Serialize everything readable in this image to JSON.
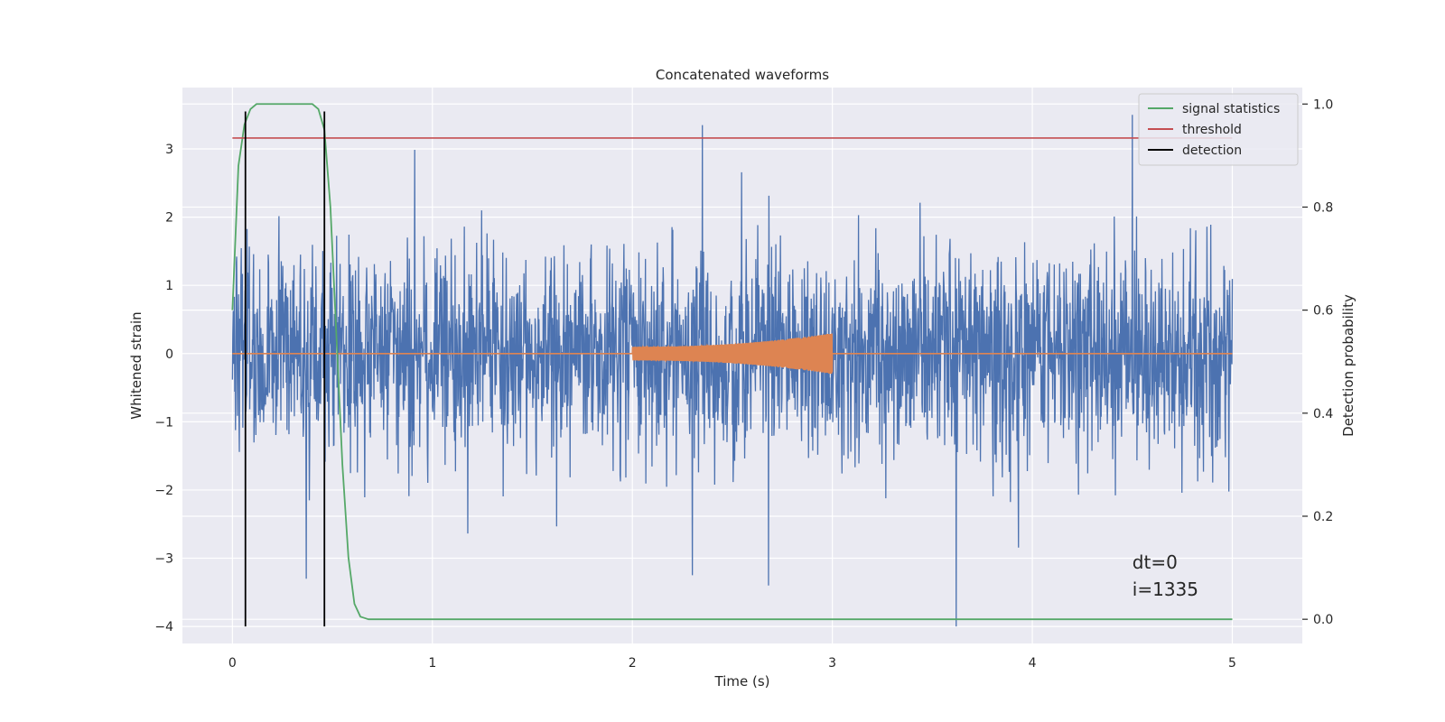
{
  "chart_data": {
    "type": "line",
    "title": "Concatenated waveforms",
    "xlabel": "Time (s)",
    "ylabel": "Whitened strain",
    "y2label": "Detection probability",
    "xlim": [
      -0.25,
      5.35
    ],
    "ylim": [
      -4.25,
      3.9
    ],
    "y2lim": [
      -0.047,
      1.032
    ],
    "xticks": [
      0,
      1,
      2,
      3,
      4,
      5
    ],
    "yticks": [
      -4,
      -3,
      -2,
      -1,
      0,
      1,
      2,
      3
    ],
    "y2ticks": [
      0.0,
      0.2,
      0.4,
      0.6,
      0.8,
      1.0
    ],
    "y2tick_labels": [
      "0.0",
      "0.2",
      "0.4",
      "0.6",
      "0.8",
      "1.0"
    ],
    "grid": true,
    "legend_position": "top-right",
    "series": [
      {
        "name": "",
        "kind": "noise",
        "axis": "left",
        "color": "#4c72b0",
        "x_range": [
          0,
          5
        ],
        "typical_envelope": [
          -1.5,
          1.5
        ],
        "peak_values": [
          {
            "x": 2.35,
            "y": 3.35
          },
          {
            "x": 4.5,
            "y": 3.5
          },
          {
            "x": 3.62,
            "y": -4.0
          },
          {
            "x": 2.68,
            "y": -3.4
          },
          {
            "x": 0.37,
            "y": -3.3
          },
          {
            "x": 2.3,
            "y": -3.25
          }
        ]
      },
      {
        "name": "",
        "kind": "chirp",
        "axis": "left",
        "color": "#dd8452",
        "x_range": [
          0,
          5
        ],
        "chirp_x_range": [
          2.0,
          3.0
        ],
        "amplitude_start": 0.1,
        "amplitude_end": 0.3
      },
      {
        "name": "signal statistics",
        "axis": "right",
        "color": "#55a868",
        "x": [
          0.0,
          0.03,
          0.06,
          0.09,
          0.12,
          0.15,
          0.2,
          0.3,
          0.4,
          0.43,
          0.46,
          0.49,
          0.52,
          0.55,
          0.58,
          0.61,
          0.64,
          0.68,
          0.75,
          1.0,
          2.0,
          3.0,
          4.0,
          5.0
        ],
        "y": [
          0.6,
          0.88,
          0.96,
          0.99,
          1.0,
          1.0,
          1.0,
          1.0,
          1.0,
          0.99,
          0.95,
          0.8,
          0.55,
          0.3,
          0.12,
          0.03,
          0.005,
          0.0,
          0.0,
          0.0,
          0.0,
          0.0,
          0.0,
          0.0
        ]
      },
      {
        "name": "threshold",
        "axis": "left",
        "color": "#c44e52",
        "x": [
          0,
          5
        ],
        "y": [
          3.16,
          3.16
        ]
      },
      {
        "name": "detection",
        "axis": "left",
        "color": "#000000",
        "vlines": [
          0.065,
          0.46
        ],
        "y_span": [
          -4.0,
          3.55
        ]
      }
    ],
    "annotations": [
      {
        "text": "dt=0",
        "x": 4.5,
        "y": -3.15
      },
      {
        "text": "i=1335",
        "x": 4.5,
        "y": -3.55
      }
    ]
  }
}
